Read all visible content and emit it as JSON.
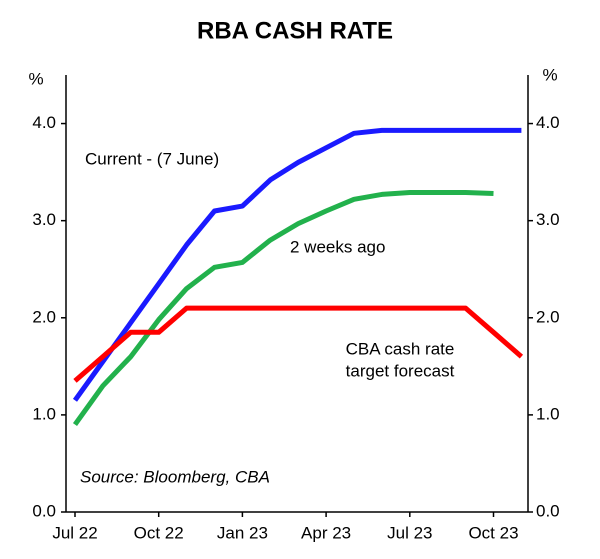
{
  "chart_data": {
    "type": "line",
    "title": "RBA CASH RATE",
    "y_unit": "%",
    "y2_unit": "%",
    "x": [
      "2022-07",
      "2022-08",
      "2022-09",
      "2022-10",
      "2022-11",
      "2022-12",
      "2023-01",
      "2023-02",
      "2023-03",
      "2023-04",
      "2023-05",
      "2023-06",
      "2023-07",
      "2023-08",
      "2023-09",
      "2023-10",
      "2023-11"
    ],
    "xticks": [
      {
        "value": "2022-07",
        "label": "Jul 22"
      },
      {
        "value": "2022-10",
        "label": "Oct 22"
      },
      {
        "value": "2023-01",
        "label": "Jan 23"
      },
      {
        "value": "2023-04",
        "label": "Apr 23"
      },
      {
        "value": "2023-07",
        "label": "Jul 23"
      },
      {
        "value": "2023-10",
        "label": "Oct 23"
      }
    ],
    "ylim": [
      0,
      4.5
    ],
    "yticks": [
      {
        "value": 0,
        "label": "0.0"
      },
      {
        "value": 1,
        "label": "1.0"
      },
      {
        "value": 2,
        "label": "2.0"
      },
      {
        "value": 3,
        "label": "3.0"
      },
      {
        "value": 4,
        "label": "4.0"
      }
    ],
    "y2lim": [
      0,
      4.5
    ],
    "y2ticks": [
      {
        "value": 0,
        "label": "0.0"
      },
      {
        "value": 1,
        "label": "1.0"
      },
      {
        "value": 2,
        "label": "2.0"
      },
      {
        "value": 3,
        "label": "3.0"
      },
      {
        "value": 4,
        "label": "4.0"
      }
    ],
    "series": [
      {
        "name": "Current - (7 June)",
        "color": "#1a1aff",
        "values": [
          1.15,
          1.55,
          1.95,
          2.35,
          2.75,
          3.1,
          3.15,
          3.42,
          3.6,
          3.75,
          3.9,
          3.93,
          3.93,
          3.93,
          3.93,
          3.93,
          3.93
        ]
      },
      {
        "name": "2 weeks ago",
        "color": "#22b14c",
        "values": [
          0.9,
          1.3,
          1.6,
          1.98,
          2.3,
          2.52,
          2.57,
          2.8,
          2.97,
          3.1,
          3.22,
          3.27,
          3.29,
          3.29,
          3.29,
          3.28,
          null
        ]
      },
      {
        "name": [
          "CBA cash rate",
          "target forecast"
        ],
        "color": "#ff0000",
        "values": [
          1.35,
          1.6,
          1.85,
          1.85,
          2.1,
          2.1,
          2.1,
          2.1,
          2.1,
          2.1,
          2.1,
          2.1,
          2.1,
          2.1,
          2.1,
          1.85,
          1.6
        ]
      }
    ],
    "source": "Source: Bloomberg, CBA"
  }
}
